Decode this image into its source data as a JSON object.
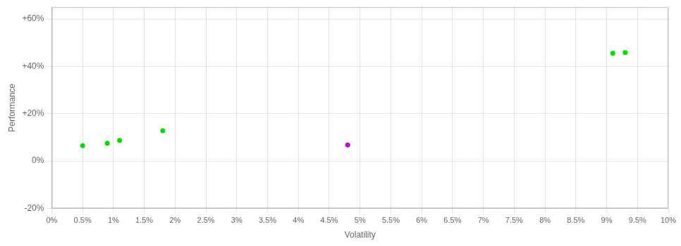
{
  "chart_data": {
    "type": "scatter",
    "xlabel": "Volatility",
    "ylabel": "Performance",
    "xlim": [
      0,
      0.1
    ],
    "ylim": [
      -0.2,
      0.65
    ],
    "xticks": [
      {
        "value": 0.0,
        "label": "0%"
      },
      {
        "value": 0.005,
        "label": "0.5%"
      },
      {
        "value": 0.01,
        "label": "1%"
      },
      {
        "value": 0.015,
        "label": "1.5%"
      },
      {
        "value": 0.02,
        "label": "2%"
      },
      {
        "value": 0.025,
        "label": "2.5%"
      },
      {
        "value": 0.03,
        "label": "3%"
      },
      {
        "value": 0.035,
        "label": "3.5%"
      },
      {
        "value": 0.04,
        "label": "4%"
      },
      {
        "value": 0.045,
        "label": "4.5%"
      },
      {
        "value": 0.05,
        "label": "5%"
      },
      {
        "value": 0.055,
        "label": "5.5%"
      },
      {
        "value": 0.06,
        "label": "6%"
      },
      {
        "value": 0.065,
        "label": "6.5%"
      },
      {
        "value": 0.07,
        "label": "7%"
      },
      {
        "value": 0.075,
        "label": "7.5%"
      },
      {
        "value": 0.08,
        "label": "8%"
      },
      {
        "value": 0.085,
        "label": "8.5%"
      },
      {
        "value": 0.09,
        "label": "9%"
      },
      {
        "value": 0.095,
        "label": "9.5%"
      },
      {
        "value": 0.1,
        "label": "10%"
      }
    ],
    "yticks": [
      {
        "value": -0.2,
        "label": "-20%"
      },
      {
        "value": 0.0,
        "label": "0%"
      },
      {
        "value": 0.2,
        "label": "+20%"
      },
      {
        "value": 0.4,
        "label": "+40%"
      },
      {
        "value": 0.6,
        "label": "+60%"
      }
    ],
    "grid": true,
    "series": [
      {
        "color": "#00dd00",
        "x": [
          0.005,
          0.009,
          0.011,
          0.018,
          0.091,
          0.093
        ],
        "values": [
          0.065,
          0.075,
          0.087,
          0.128,
          0.455,
          0.458
        ]
      },
      {
        "color": "#cc00cc",
        "x": [
          0.048
        ],
        "values": [
          0.068
        ]
      }
    ]
  }
}
